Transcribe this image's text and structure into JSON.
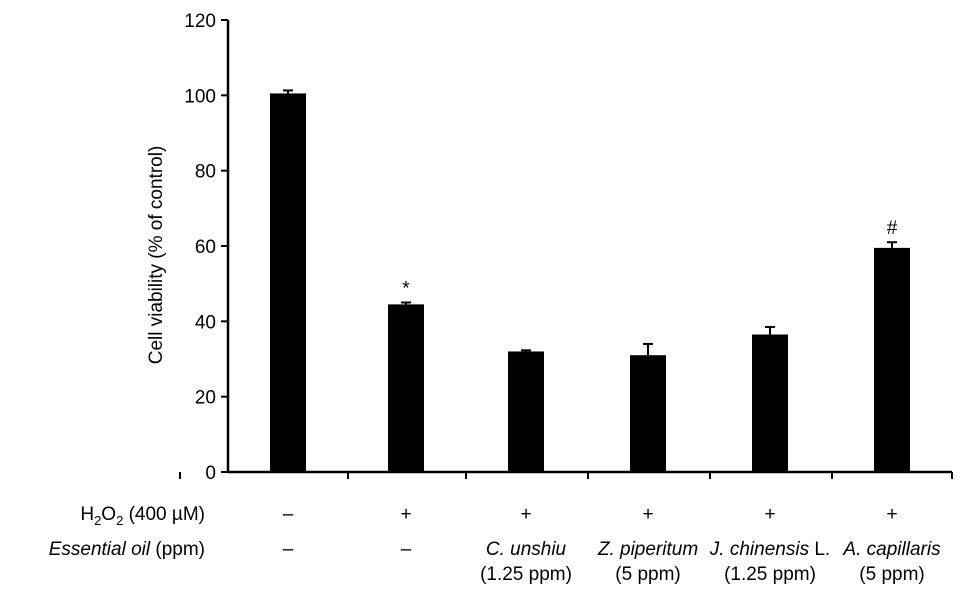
{
  "chart_data": {
    "type": "bar",
    "ylabel": "Cell viability (% of control)",
    "ylim": [
      0,
      120
    ],
    "yticks": [
      "0",
      "20",
      "40",
      "60",
      "80",
      "100",
      "120"
    ],
    "grid": false,
    "bar_color": "#000000",
    "values": [
      100.5,
      44.5,
      32,
      31,
      36.5,
      59.5
    ],
    "errors": [
      0.8,
      0.5,
      0.3,
      3,
      2,
      1.5
    ],
    "annotations": [
      "",
      "*",
      "",
      "",
      "",
      "#"
    ],
    "rows": {
      "h2o2": {
        "label_pre": "H",
        "label_sub1": "2",
        "label_mid": "O",
        "label_sub2": "2",
        "label_post": " (400 µM)",
        "values": [
          "–",
          "+",
          "+",
          "+",
          "+",
          "+"
        ]
      },
      "oil": {
        "label_italic": "Essential oil",
        "label_rest": " (ppm)",
        "values": [
          {
            "name": "–",
            "name_suffix": "",
            "dose": "",
            "italic": false
          },
          {
            "name": "–",
            "name_suffix": "",
            "dose": "",
            "italic": false
          },
          {
            "name": "C. unshiu",
            "name_suffix": "",
            "dose": "(1.25 ppm)",
            "italic": true
          },
          {
            "name": "Z. piperitum",
            "name_suffix": "",
            "dose": "(5 ppm)",
            "italic": true
          },
          {
            "name": "J. chinensis",
            "name_suffix": " L.",
            "dose": "(1.25 ppm)",
            "italic": true
          },
          {
            "name": "A. capillaris",
            "name_suffix": "",
            "dose": "(5 ppm)",
            "italic": true
          }
        ]
      }
    }
  }
}
